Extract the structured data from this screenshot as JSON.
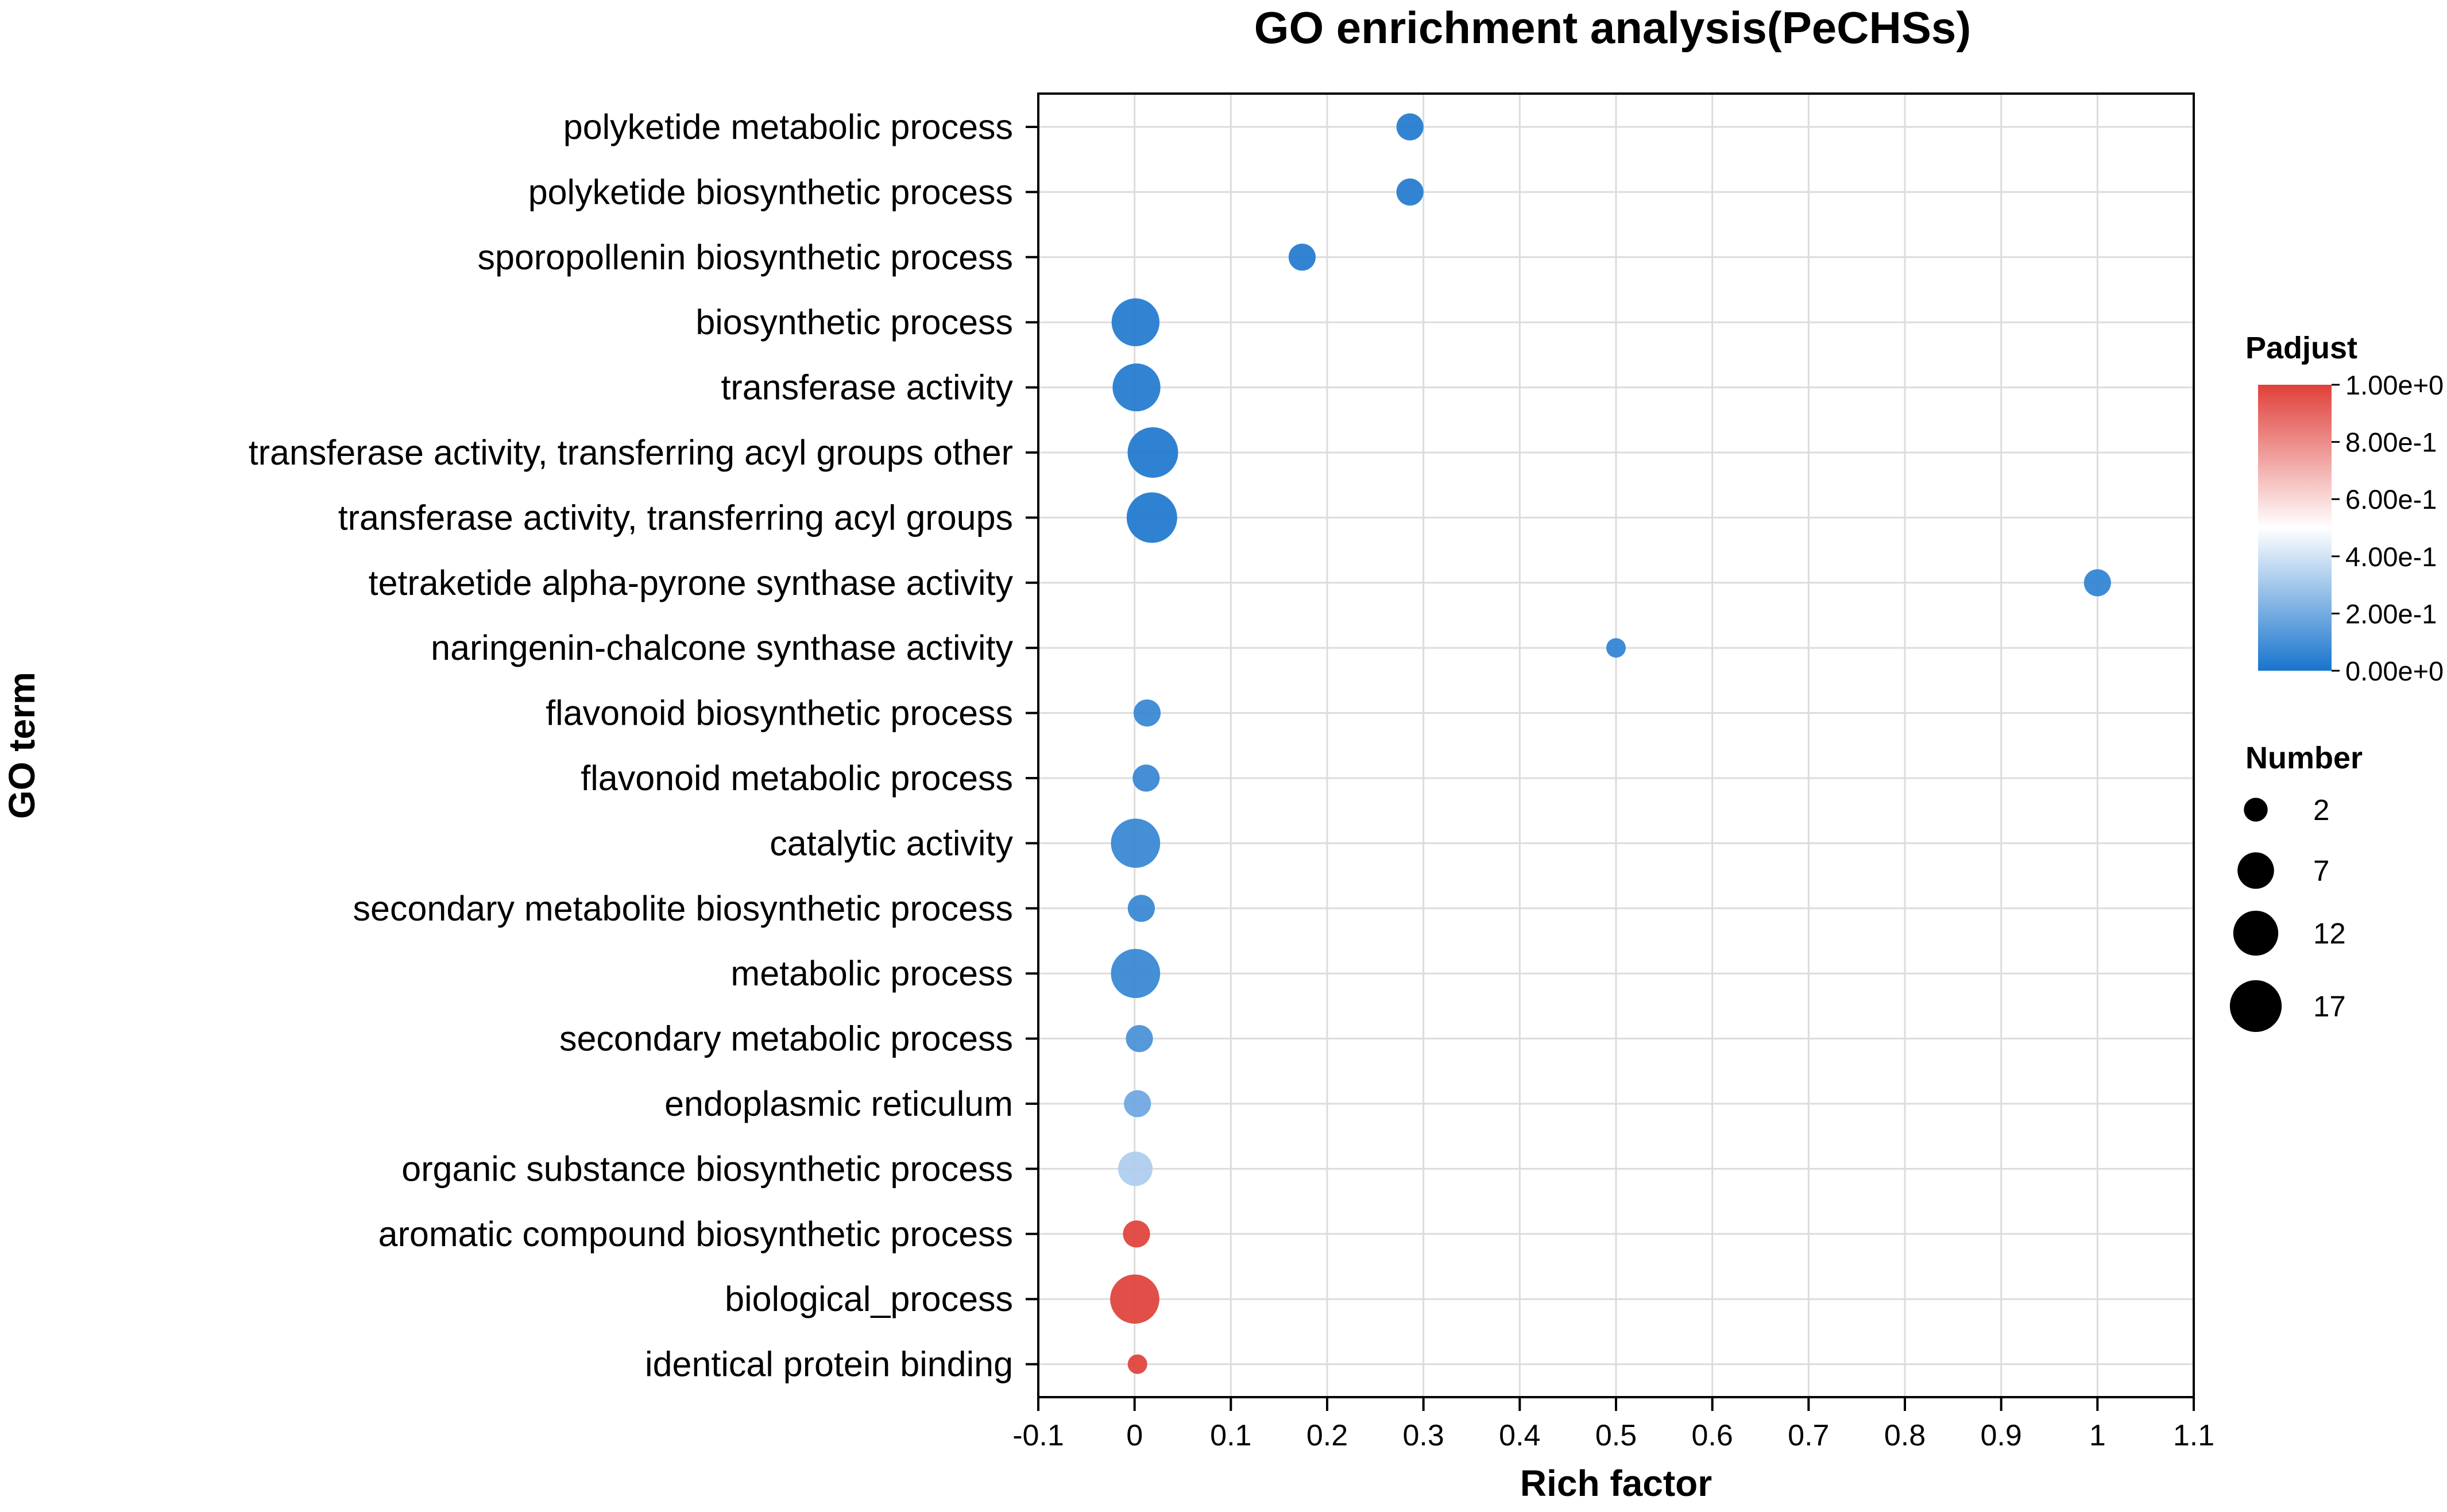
{
  "chart_data": {
    "type": "scatter",
    "title": "GO enrichment analysis(PeCHSs)",
    "xlabel": "Rich factor",
    "ylabel": "GO term",
    "xlim": [
      -0.1,
      1.1
    ],
    "xticks": [
      -0.1,
      0,
      0.1,
      0.2,
      0.3,
      0.4,
      0.5,
      0.6,
      0.7,
      0.8,
      0.9,
      1,
      1.1
    ],
    "xtick_labels": [
      "-0.1",
      "0",
      "0.1",
      "0.2",
      "0.3",
      "0.4",
      "0.5",
      "0.6",
      "0.7",
      "0.8",
      "0.9",
      "1",
      "1.1"
    ],
    "grid": true,
    "terms": [
      {
        "term": "polyketide metabolic process",
        "rich_factor": 0.286,
        "number": 3,
        "padjust": 0.02
      },
      {
        "term": "polyketide biosynthetic process",
        "rich_factor": 0.286,
        "number": 3,
        "padjust": 0.02
      },
      {
        "term": "sporopollenin biosynthetic process",
        "rich_factor": 0.174,
        "number": 3,
        "padjust": 0.02
      },
      {
        "term": "biosynthetic process",
        "rich_factor": 0.001,
        "number": 14,
        "padjust": 0.02
      },
      {
        "term": "transferase activity",
        "rich_factor": 0.002,
        "number": 14,
        "padjust": 0.02
      },
      {
        "term": "transferase activity, transferring acyl groups other",
        "rich_factor": 0.019,
        "number": 16,
        "padjust": 0.01
      },
      {
        "term": "transferase activity, transferring acyl groups",
        "rich_factor": 0.018,
        "number": 16,
        "padjust": 0.01
      },
      {
        "term": "tetraketide alpha-pyrone synthase activity",
        "rich_factor": 1.0,
        "number": 3,
        "padjust": 0.05
      },
      {
        "term": "naringenin-chalcone synthase activity",
        "rich_factor": 0.5,
        "number": 1,
        "padjust": 0.05
      },
      {
        "term": "flavonoid biosynthetic process",
        "rich_factor": 0.013,
        "number": 3,
        "padjust": 0.06
      },
      {
        "term": "flavonoid metabolic process",
        "rich_factor": 0.012,
        "number": 3,
        "padjust": 0.06
      },
      {
        "term": "catalytic activity",
        "rich_factor": 0.001,
        "number": 15,
        "padjust": 0.06
      },
      {
        "term": "secondary metabolite biosynthetic process",
        "rich_factor": 0.007,
        "number": 3,
        "padjust": 0.06
      },
      {
        "term": "metabolic process",
        "rich_factor": 0.001,
        "number": 15,
        "padjust": 0.06
      },
      {
        "term": "secondary metabolic process",
        "rich_factor": 0.005,
        "number": 3,
        "padjust": 0.1
      },
      {
        "term": "endoplasmic reticulum",
        "rich_factor": 0.003,
        "number": 3,
        "padjust": 0.18
      },
      {
        "term": "organic substance biosynthetic process",
        "rich_factor": 0.0008,
        "number": 6,
        "padjust": 0.32
      },
      {
        "term": "aromatic compound biosynthetic process",
        "rich_factor": 0.002,
        "number": 3,
        "padjust": 1.0
      },
      {
        "term": "biological_process",
        "rich_factor": 0.0002,
        "number": 15,
        "padjust": 1.0
      },
      {
        "term": "identical protein binding",
        "rich_factor": 0.003,
        "number": 1,
        "padjust": 1.0
      }
    ],
    "legend": {
      "color_title": "Padjust",
      "color_ticks": [
        "1.00e+0",
        "8.00e-1",
        "6.00e-1",
        "4.00e-1",
        "2.00e-1",
        "0.00e+0"
      ],
      "color_values": [
        1.0,
        0.8,
        0.6,
        0.4,
        0.2,
        0.0
      ],
      "color_scale": {
        "low": "#1874cd",
        "mid": "#ffffff",
        "high": "#e0403a"
      },
      "size_title": "Number",
      "size_values": [
        2,
        7,
        12,
        17
      ],
      "size_labels": [
        "2",
        "7",
        "12",
        "17"
      ]
    }
  }
}
